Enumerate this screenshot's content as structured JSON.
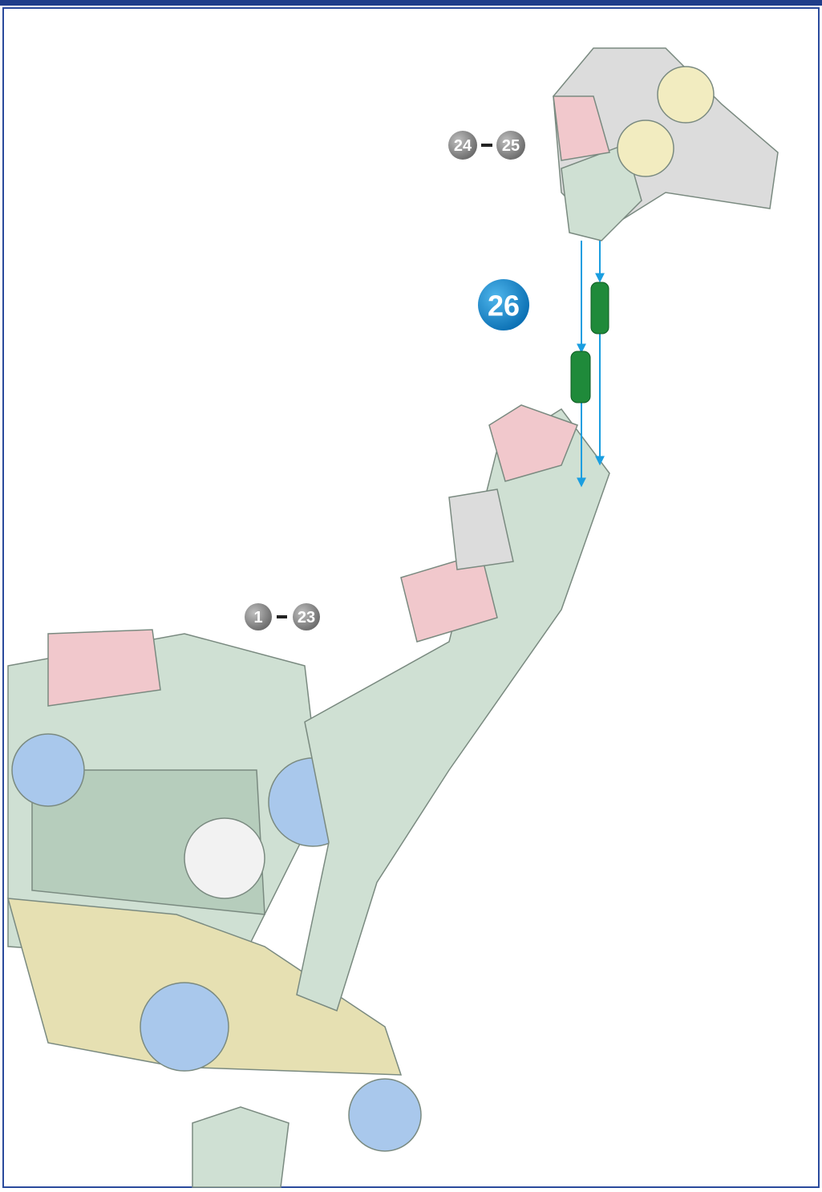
{
  "step": {
    "number": "26"
  },
  "references": [
    {
      "from": "24",
      "to": "25"
    },
    {
      "from": "1",
      "to": "23"
    }
  ]
}
